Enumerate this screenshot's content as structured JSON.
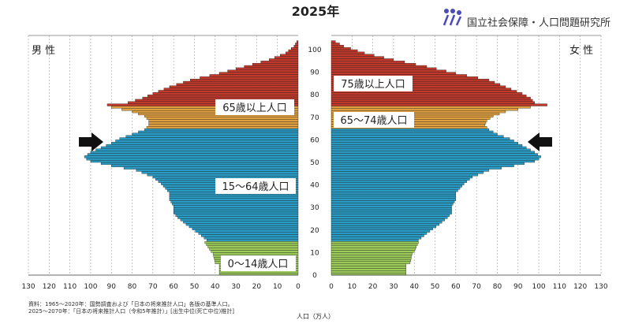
{
  "title": "2025年",
  "publisher": "国立社会保障・人口問題研究所",
  "male_label": "男 性",
  "female_label": "女 性",
  "x_axis_title": "人口（万人）",
  "source_lines": [
    "資料：1965〜2020年：国勢調査および「日本の将来推計人口」各版の基準人口。",
    "2025〜2070年：「日本の将来推計人口（令和5年推計）」[出生中位(死亡中位)推計]"
  ],
  "band_labels": {
    "elderly_75": "75歳以上人口",
    "elderly_65_male": "65歳以上人口",
    "elderly_65_74": "65〜74歳人口",
    "working": "15〜64歳人口",
    "children": "0〜14歳人口"
  },
  "colors": {
    "age_75_plus": "#c0392b",
    "age_65_74": "#e0a040",
    "age_15_64": "#2a9bc4",
    "age_0_14": "#9ccb5a",
    "marker": "#111111"
  },
  "chart_data": {
    "type": "bar",
    "orientation": "horizontal",
    "subtype": "population_pyramid",
    "year": "2025",
    "x_unit": "万人",
    "x_ticks_left": [
      130,
      120,
      110,
      100,
      90,
      80,
      70,
      60,
      50,
      40,
      30,
      20,
      10,
      0
    ],
    "x_ticks_right": [
      0,
      10,
      20,
      30,
      40,
      50,
      60,
      70,
      80,
      90,
      100,
      110,
      120,
      130
    ],
    "y_ticks": [
      0,
      10,
      20,
      30,
      40,
      50,
      60,
      70,
      80,
      90,
      100
    ],
    "age_max": 105,
    "xlim": [
      0,
      130
    ],
    "grid": true,
    "arrow_marker_age": 58,
    "male_points": [
      [
        0,
        38
      ],
      [
        4,
        38
      ],
      [
        5,
        40
      ],
      [
        9,
        41
      ],
      [
        10,
        42
      ],
      [
        14,
        45
      ],
      [
        15,
        44
      ],
      [
        18,
        48
      ],
      [
        22,
        54
      ],
      [
        25,
        58
      ],
      [
        27,
        60
      ],
      [
        30,
        60
      ],
      [
        33,
        62
      ],
      [
        36,
        62
      ],
      [
        40,
        66
      ],
      [
        43,
        70
      ],
      [
        46,
        78
      ],
      [
        48,
        90
      ],
      [
        50,
        100
      ],
      [
        51,
        102
      ],
      [
        52,
        103
      ],
      [
        54,
        100
      ],
      [
        56,
        95
      ],
      [
        58,
        90
      ],
      [
        60,
        86
      ],
      [
        62,
        80
      ],
      [
        64,
        74
      ],
      [
        66,
        72
      ],
      [
        68,
        72
      ],
      [
        70,
        74
      ],
      [
        72,
        80
      ],
      [
        74,
        90
      ],
      [
        75,
        92
      ],
      [
        76,
        82
      ],
      [
        78,
        75
      ],
      [
        80,
        70
      ],
      [
        83,
        62
      ],
      [
        86,
        52
      ],
      [
        89,
        38
      ],
      [
        92,
        26
      ],
      [
        95,
        14
      ],
      [
        98,
        6
      ],
      [
        101,
        2
      ],
      [
        104,
        0
      ]
    ],
    "female_points": [
      [
        0,
        36
      ],
      [
        4,
        36
      ],
      [
        5,
        38
      ],
      [
        9,
        39
      ],
      [
        10,
        40
      ],
      [
        14,
        42
      ],
      [
        15,
        42
      ],
      [
        18,
        46
      ],
      [
        22,
        52
      ],
      [
        25,
        56
      ],
      [
        27,
        58
      ],
      [
        30,
        58
      ],
      [
        33,
        60
      ],
      [
        36,
        60
      ],
      [
        40,
        64
      ],
      [
        43,
        68
      ],
      [
        46,
        76
      ],
      [
        48,
        88
      ],
      [
        50,
        98
      ],
      [
        51,
        100
      ],
      [
        52,
        101
      ],
      [
        54,
        98
      ],
      [
        56,
        94
      ],
      [
        58,
        90
      ],
      [
        60,
        86
      ],
      [
        62,
        80
      ],
      [
        64,
        76
      ],
      [
        66,
        74
      ],
      [
        68,
        75
      ],
      [
        70,
        78
      ],
      [
        72,
        84
      ],
      [
        74,
        96
      ],
      [
        75,
        104
      ],
      [
        76,
        98
      ],
      [
        78,
        96
      ],
      [
        80,
        92
      ],
      [
        83,
        84
      ],
      [
        86,
        76
      ],
      [
        89,
        60
      ],
      [
        92,
        46
      ],
      [
        95,
        30
      ],
      [
        98,
        16
      ],
      [
        101,
        6
      ],
      [
        104,
        0
      ]
    ]
  }
}
